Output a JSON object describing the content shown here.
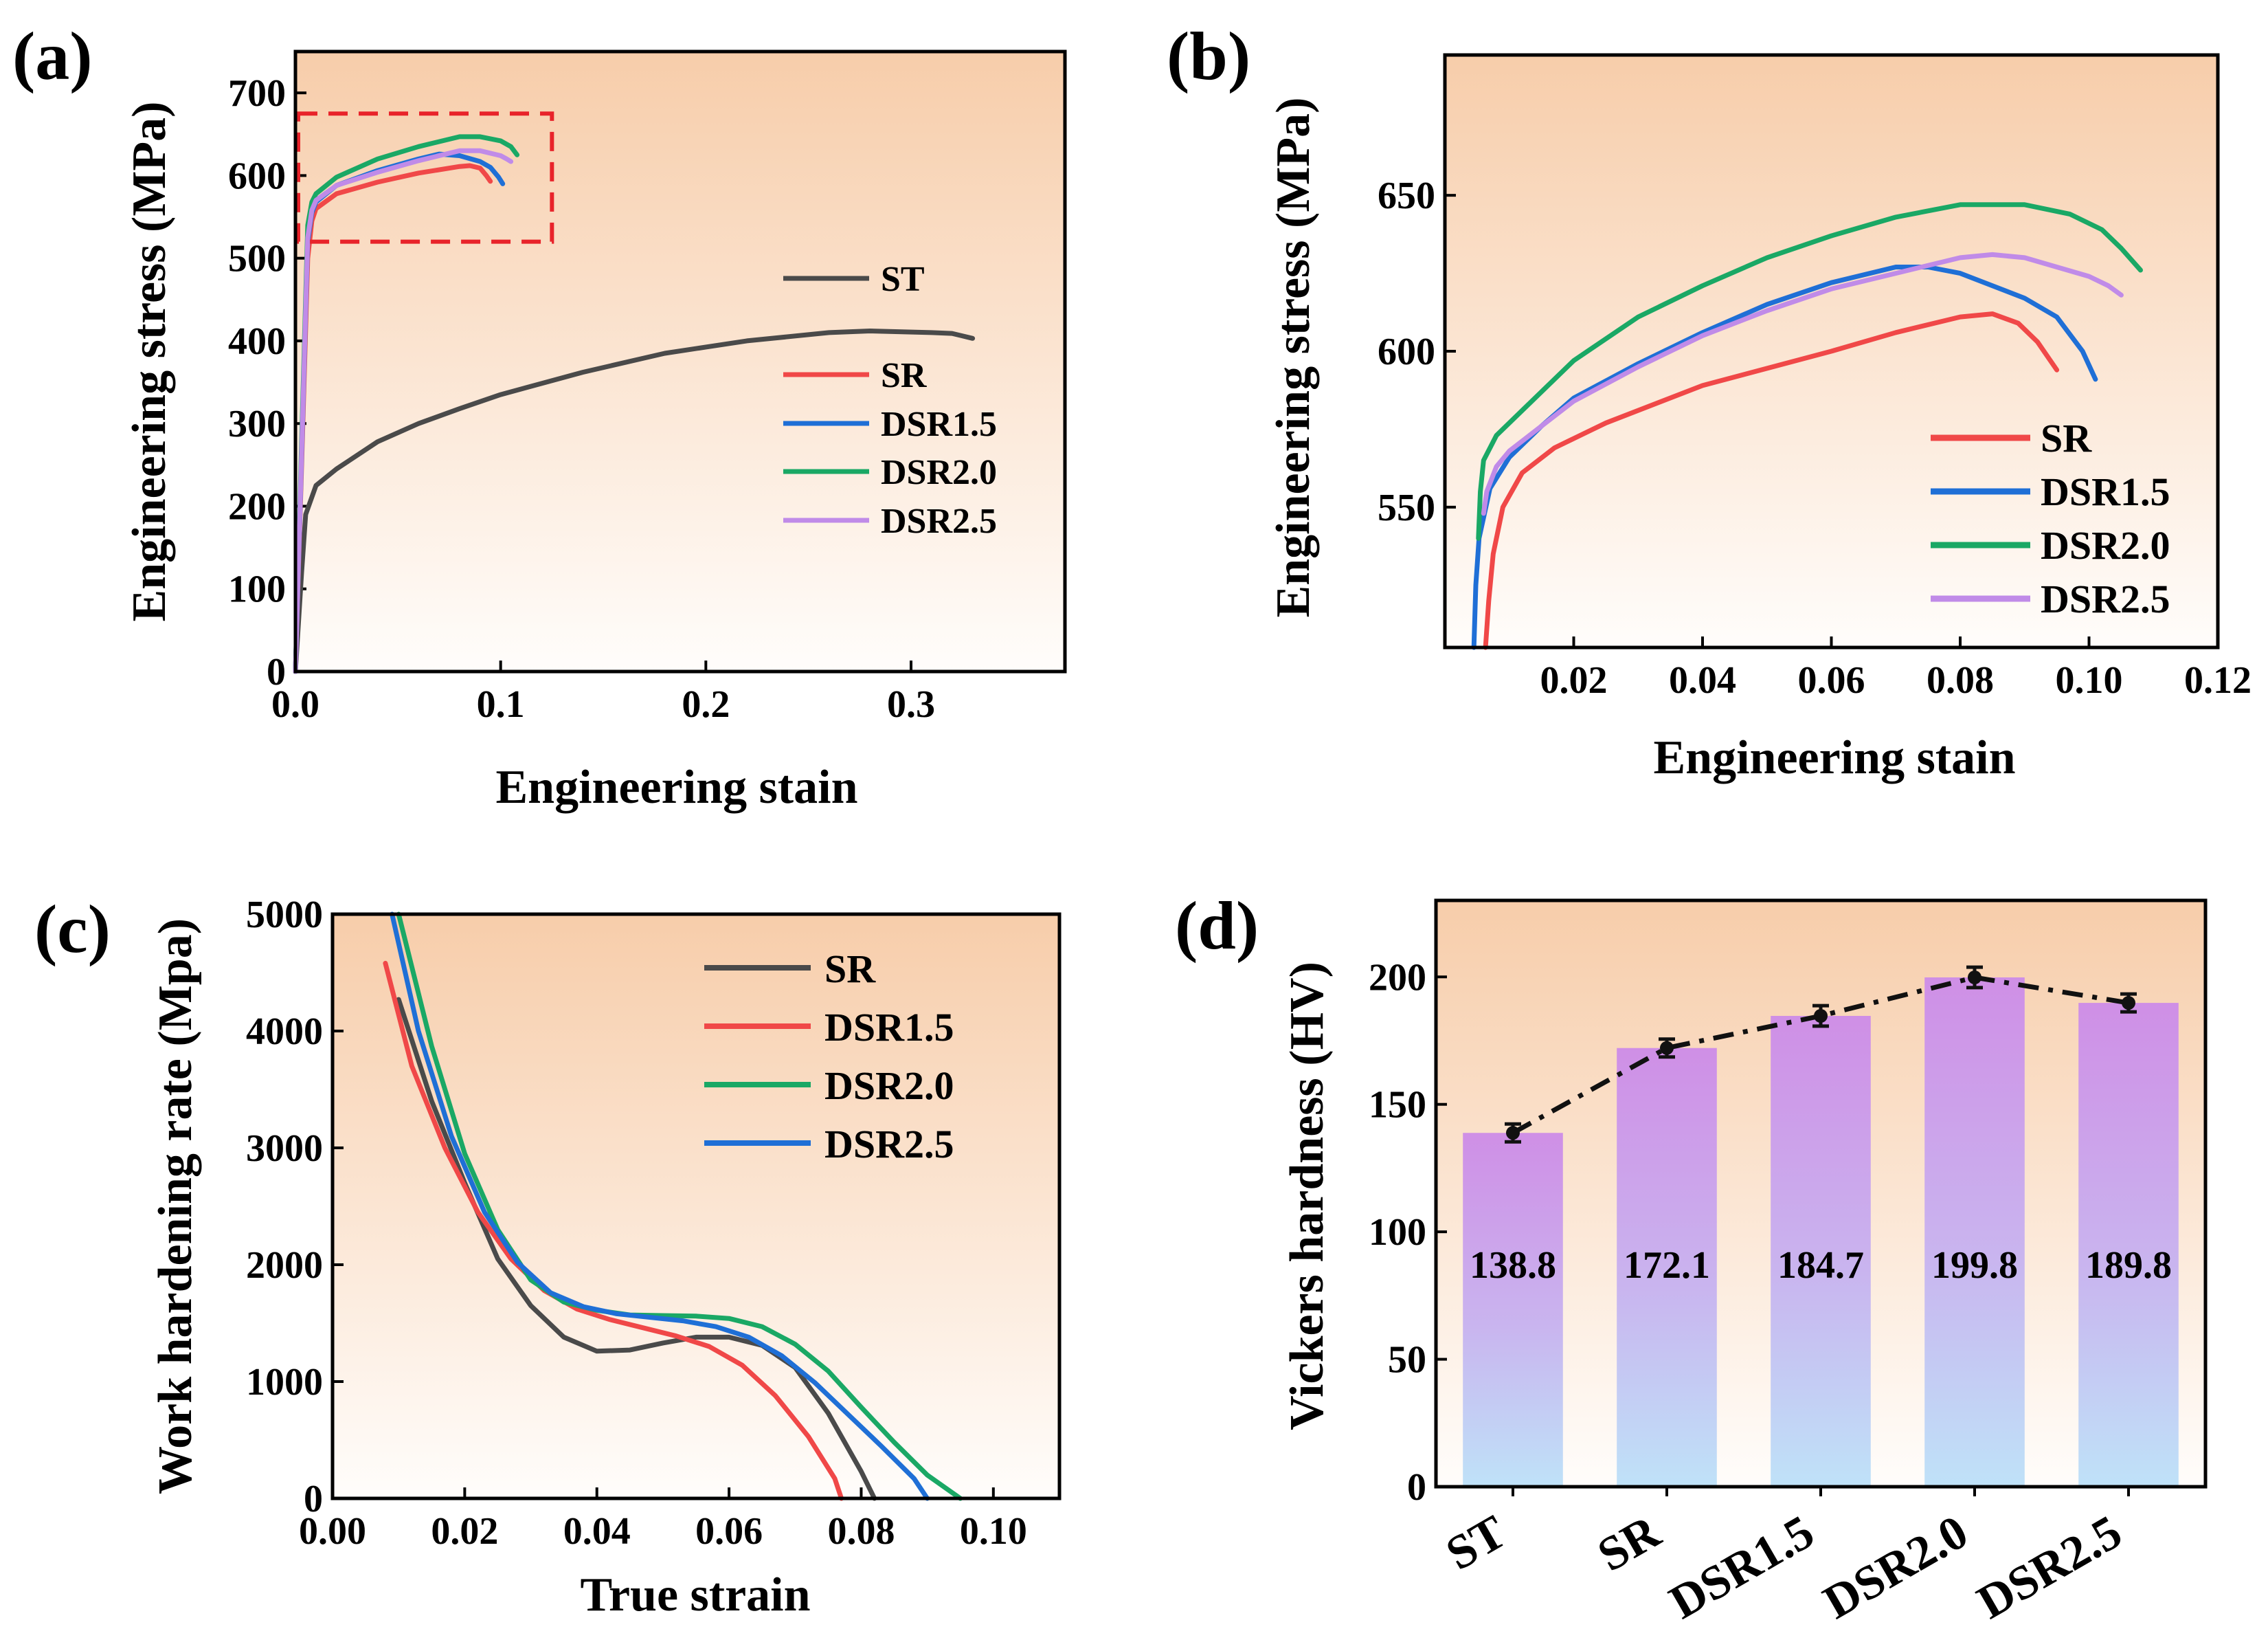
{
  "colors": {
    "ST": "#4a4a4a",
    "SR": "#f04848",
    "DSR1.5": "#1f6fd6",
    "DSR2.0": "#1aa865",
    "DSR2.5": "#c08be8",
    "zoom_box": "#e8232a",
    "bg_top": "#f7cdaa",
    "bg_bottom": "#fffdfb",
    "bar_top": "#cf8fe6",
    "bar_bottom": "#bfe2f8"
  },
  "chart_data": [
    {
      "panel": "(a)",
      "type": "line",
      "xlabel": "Engineering stain",
      "ylabel": "Engineering stress (MPa)",
      "xlim": [
        0,
        0.375
      ],
      "ylim": [
        0,
        750
      ],
      "xticks": [
        "0.0",
        "0.1",
        "0.2",
        "0.3"
      ],
      "yticks": [
        "0",
        "100",
        "200",
        "300",
        "400",
        "500",
        "600",
        "700"
      ],
      "zoom_box": {
        "x": [
          0.0,
          0.125
        ],
        "y": [
          520,
          675
        ]
      },
      "legend": [
        "ST",
        "SR",
        "DSR1.5",
        "DSR2.0",
        "DSR2.5"
      ],
      "series": [
        {
          "name": "ST",
          "points": [
            [
              0,
              0
            ],
            [
              0.003,
              120
            ],
            [
              0.005,
              190
            ],
            [
              0.01,
              225
            ],
            [
              0.02,
              245
            ],
            [
              0.04,
              278
            ],
            [
              0.06,
              300
            ],
            [
              0.08,
              318
            ],
            [
              0.1,
              335
            ],
            [
              0.14,
              362
            ],
            [
              0.18,
              385
            ],
            [
              0.22,
              400
            ],
            [
              0.26,
              410
            ],
            [
              0.28,
              412
            ],
            [
              0.31,
              410
            ],
            [
              0.32,
              409
            ],
            [
              0.33,
              403
            ]
          ]
        },
        {
          "name": "SR",
          "points": [
            [
              0,
              0
            ],
            [
              0.003,
              250
            ],
            [
              0.006,
              500
            ],
            [
              0.008,
              545
            ],
            [
              0.01,
              560
            ],
            [
              0.02,
              578
            ],
            [
              0.04,
              592
            ],
            [
              0.06,
              603
            ],
            [
              0.08,
              611
            ],
            [
              0.085,
              612
            ],
            [
              0.09,
              609
            ],
            [
              0.093,
              600
            ],
            [
              0.095,
              593
            ]
          ]
        },
        {
          "name": "DSR1.5",
          "points": [
            [
              0,
              0
            ],
            [
              0.003,
              260
            ],
            [
              0.006,
              520
            ],
            [
              0.008,
              555
            ],
            [
              0.01,
              568
            ],
            [
              0.02,
              588
            ],
            [
              0.04,
              606
            ],
            [
              0.06,
              620
            ],
            [
              0.07,
              626
            ],
            [
              0.08,
              624
            ],
            [
              0.09,
              617
            ],
            [
              0.095,
              610
            ],
            [
              0.099,
              598
            ],
            [
              0.101,
              590
            ]
          ]
        },
        {
          "name": "DSR2.0",
          "points": [
            [
              0,
              0
            ],
            [
              0.003,
              280
            ],
            [
              0.006,
              540
            ],
            [
              0.008,
              568
            ],
            [
              0.01,
              578
            ],
            [
              0.02,
              598
            ],
            [
              0.04,
              620
            ],
            [
              0.06,
              635
            ],
            [
              0.08,
              647
            ],
            [
              0.09,
              647
            ],
            [
              0.1,
              642
            ],
            [
              0.105,
              635
            ],
            [
              0.108,
              625
            ]
          ]
        },
        {
          "name": "DSR2.5",
          "points": [
            [
              0,
              0
            ],
            [
              0.003,
              265
            ],
            [
              0.006,
              525
            ],
            [
              0.008,
              558
            ],
            [
              0.01,
              570
            ],
            [
              0.02,
              588
            ],
            [
              0.04,
              604
            ],
            [
              0.06,
              618
            ],
            [
              0.08,
              630
            ],
            [
              0.09,
              630
            ],
            [
              0.1,
              624
            ],
            [
              0.103,
              620
            ],
            [
              0.105,
              617
            ]
          ]
        }
      ]
    },
    {
      "panel": "(b)",
      "type": "line",
      "xlabel": "Engineering stain",
      "ylabel": "Engineering stress (MPa)",
      "xlim": [
        0,
        0.12
      ],
      "ylim": [
        505,
        695
      ],
      "xticks": [
        "0.02",
        "0.04",
        "0.06",
        "0.08",
        "0.10",
        "0.12"
      ],
      "yticks": [
        "550",
        "600",
        "650"
      ],
      "legend": [
        "SR",
        "DSR1.5",
        "DSR2.0",
        "DSR2.5"
      ],
      "series": [
        {
          "name": "SR",
          "points": [
            [
              0.0063,
              505
            ],
            [
              0.0068,
              520
            ],
            [
              0.0075,
              535
            ],
            [
              0.009,
              550
            ],
            [
              0.012,
              561
            ],
            [
              0.017,
              569
            ],
            [
              0.025,
              577
            ],
            [
              0.04,
              589
            ],
            [
              0.06,
              600
            ],
            [
              0.07,
              606
            ],
            [
              0.08,
              611
            ],
            [
              0.085,
              612
            ],
            [
              0.089,
              609
            ],
            [
              0.092,
              603
            ],
            [
              0.095,
              594
            ]
          ]
        },
        {
          "name": "DSR1.5",
          "points": [
            [
              0.0045,
              505
            ],
            [
              0.0048,
              525
            ],
            [
              0.0053,
              540
            ],
            [
              0.007,
              556
            ],
            [
              0.01,
              566
            ],
            [
              0.015,
              576
            ],
            [
              0.02,
              585
            ],
            [
              0.03,
              596
            ],
            [
              0.04,
              606
            ],
            [
              0.05,
              615
            ],
            [
              0.06,
              622
            ],
            [
              0.07,
              627
            ],
            [
              0.075,
              627
            ],
            [
              0.08,
              625
            ],
            [
              0.09,
              617
            ],
            [
              0.095,
              611
            ],
            [
              0.099,
              600
            ],
            [
              0.101,
              591
            ]
          ]
        },
        {
          "name": "DSR2.0",
          "points": [
            [
              0.0052,
              540
            ],
            [
              0.0055,
              555
            ],
            [
              0.006,
              565
            ],
            [
              0.008,
              573
            ],
            [
              0.012,
              581
            ],
            [
              0.02,
              597
            ],
            [
              0.03,
              611
            ],
            [
              0.04,
              621
            ],
            [
              0.05,
              630
            ],
            [
              0.06,
              637
            ],
            [
              0.07,
              643
            ],
            [
              0.08,
              647
            ],
            [
              0.09,
              647
            ],
            [
              0.097,
              644
            ],
            [
              0.102,
              639
            ],
            [
              0.105,
              633
            ],
            [
              0.108,
              626
            ]
          ]
        },
        {
          "name": "DSR2.5",
          "points": [
            [
              0.006,
              548
            ],
            [
              0.0065,
              555
            ],
            [
              0.008,
              563
            ],
            [
              0.01,
              568
            ],
            [
              0.015,
              576
            ],
            [
              0.02,
              584
            ],
            [
              0.03,
              595
            ],
            [
              0.04,
              605
            ],
            [
              0.05,
              613
            ],
            [
              0.06,
              620
            ],
            [
              0.07,
              625
            ],
            [
              0.08,
              630
            ],
            [
              0.085,
              631
            ],
            [
              0.09,
              630
            ],
            [
              0.1,
              624
            ],
            [
              0.103,
              621
            ],
            [
              0.105,
              618
            ]
          ]
        }
      ]
    },
    {
      "panel": "(c)",
      "type": "line",
      "xlabel": "True strain",
      "ylabel": "Work hardening rate (Mpa)",
      "xlim": [
        0,
        0.11
      ],
      "ylim": [
        0,
        5000
      ],
      "xticks": [
        "0.00",
        "0.02",
        "0.04",
        "0.06",
        "0.08",
        "0.10"
      ],
      "yticks": [
        "0",
        "1000",
        "2000",
        "3000",
        "4000",
        "5000"
      ],
      "legend": [
        "SR",
        "DSR1.5",
        "DSR2.0",
        "DSR2.5"
      ],
      "series": [
        {
          "name": "SR",
          "color_key": "ST",
          "points": [
            [
              0.01,
              4270
            ],
            [
              0.015,
              3400
            ],
            [
              0.02,
              2700
            ],
            [
              0.025,
              2050
            ],
            [
              0.03,
              1650
            ],
            [
              0.035,
              1380
            ],
            [
              0.04,
              1260
            ],
            [
              0.045,
              1270
            ],
            [
              0.05,
              1330
            ],
            [
              0.055,
              1380
            ],
            [
              0.06,
              1380
            ],
            [
              0.065,
              1310
            ],
            [
              0.07,
              1120
            ],
            [
              0.075,
              730
            ],
            [
              0.08,
              230
            ],
            [
              0.082,
              0
            ]
          ]
        },
        {
          "name": "DSR1.5",
          "color_key": "SR",
          "points": [
            [
              0.008,
              4580
            ],
            [
              0.012,
              3700
            ],
            [
              0.017,
              3000
            ],
            [
              0.022,
              2450
            ],
            [
              0.027,
              2050
            ],
            [
              0.032,
              1780
            ],
            [
              0.037,
              1620
            ],
            [
              0.042,
              1530
            ],
            [
              0.047,
              1460
            ],
            [
              0.052,
              1390
            ],
            [
              0.057,
              1300
            ],
            [
              0.062,
              1140
            ],
            [
              0.067,
              880
            ],
            [
              0.072,
              530
            ],
            [
              0.076,
              170
            ],
            [
              0.077,
              0
            ]
          ]
        },
        {
          "name": "DSR2.0",
          "color_key": "DSR2.0",
          "points": [
            [
              0.01,
              5000
            ],
            [
              0.015,
              3870
            ],
            [
              0.02,
              2950
            ],
            [
              0.025,
              2300
            ],
            [
              0.03,
              1870
            ],
            [
              0.035,
              1680
            ],
            [
              0.04,
              1610
            ],
            [
              0.045,
              1570
            ],
            [
              0.05,
              1565
            ],
            [
              0.055,
              1560
            ],
            [
              0.06,
              1540
            ],
            [
              0.065,
              1470
            ],
            [
              0.07,
              1320
            ],
            [
              0.075,
              1090
            ],
            [
              0.08,
              780
            ],
            [
              0.085,
              480
            ],
            [
              0.09,
              200
            ],
            [
              0.095,
              0
            ]
          ]
        },
        {
          "name": "DSR2.5",
          "color_key": "DSR1.5",
          "points": [
            [
              0.009,
              5000
            ],
            [
              0.013,
              4000
            ],
            [
              0.018,
              3100
            ],
            [
              0.023,
              2450
            ],
            [
              0.028,
              2020
            ],
            [
              0.033,
              1760
            ],
            [
              0.038,
              1640
            ],
            [
              0.043,
              1580
            ],
            [
              0.048,
              1550
            ],
            [
              0.053,
              1520
            ],
            [
              0.058,
              1470
            ],
            [
              0.063,
              1380
            ],
            [
              0.068,
              1220
            ],
            [
              0.073,
              990
            ],
            [
              0.078,
              720
            ],
            [
              0.083,
              450
            ],
            [
              0.088,
              170
            ],
            [
              0.09,
              0
            ]
          ]
        }
      ]
    },
    {
      "panel": "(d)",
      "type": "bar",
      "ylabel": "Vickers hardness (HV)",
      "ylim": [
        0,
        230
      ],
      "yticks": [
        "0",
        "50",
        "100",
        "150",
        "200"
      ],
      "categories": [
        "ST",
        "SR",
        "DSR1.5",
        "DSR2.0",
        "DSR2.5"
      ],
      "values": [
        138.8,
        172.1,
        184.7,
        199.8,
        189.8
      ],
      "labels": [
        "138.8",
        "172.1",
        "184.7",
        "199.8",
        "189.8"
      ],
      "errors": [
        3.5,
        3.5,
        4,
        4,
        3.5
      ]
    }
  ]
}
